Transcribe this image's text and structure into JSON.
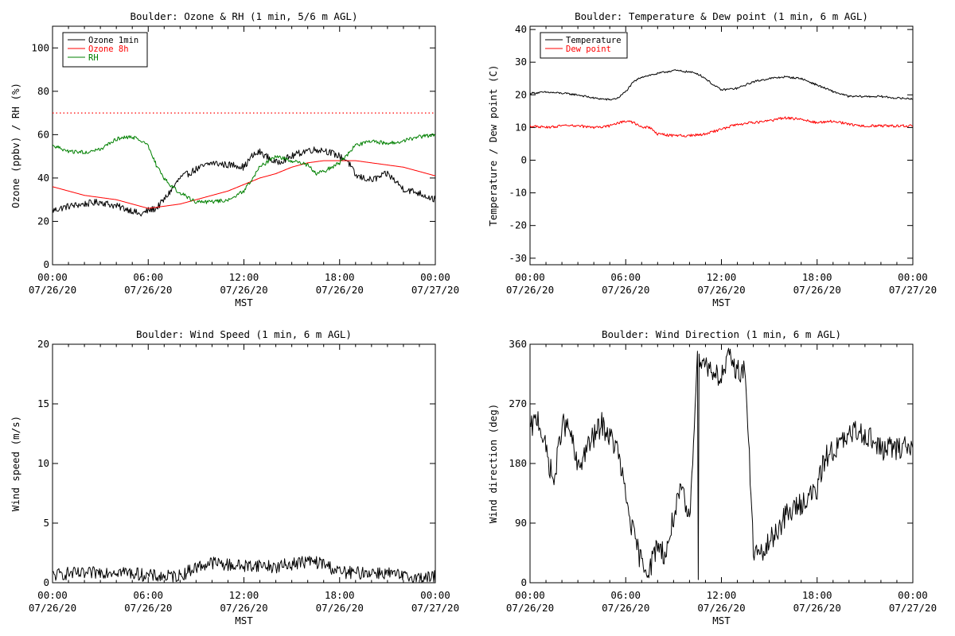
{
  "chart_data": [
    {
      "type": "line",
      "title": "Boulder: Ozone & RH (1 min, 5/6 m AGL)",
      "xlabel": "MST",
      "ylabel": "Ozone (ppbv) / RH (%)",
      "xlim": [
        0,
        24
      ],
      "ylim": [
        0,
        110
      ],
      "yticks": [
        0,
        20,
        40,
        60,
        80,
        100
      ],
      "xtick_times": [
        "00:00",
        "06:00",
        "12:00",
        "18:00",
        "00:00"
      ],
      "xtick_dates": [
        "07/26/20",
        "07/26/20",
        "07/26/20",
        "07/26/20",
        "07/27/20"
      ],
      "legend": "top-left",
      "reference_line": {
        "y": 70,
        "color": "#ff0000",
        "style": "dotted"
      },
      "series": [
        {
          "name": "Ozone 1min",
          "color": "#000000",
          "noise": 1.6,
          "x": [
            0,
            1,
            2,
            3,
            4,
            5,
            5.5,
            6,
            6.5,
            7,
            7.5,
            8,
            9,
            10,
            11,
            11.5,
            12,
            12.5,
            13,
            14,
            15,
            16,
            17,
            18,
            18.5,
            19,
            20,
            21,
            22,
            23,
            24
          ],
          "y": [
            25,
            27,
            28,
            29,
            27,
            25,
            23,
            25,
            26,
            30,
            35,
            40,
            44,
            47,
            46,
            46,
            45,
            50,
            52,
            47,
            50,
            53,
            53,
            50,
            48,
            41,
            39,
            42,
            35,
            33,
            30
          ]
        },
        {
          "name": "Ozone 8h",
          "color": "#ff0000",
          "noise": 0,
          "x": [
            0,
            1,
            2,
            3,
            4,
            5,
            6,
            7,
            8,
            9,
            10,
            11,
            12,
            13,
            14,
            15,
            16,
            17,
            18,
            19,
            20,
            21,
            22,
            23,
            24
          ],
          "y": [
            36,
            34,
            32,
            31,
            30,
            28,
            26,
            27,
            28,
            30,
            32,
            34,
            37,
            40,
            42,
            45,
            47,
            48,
            48,
            48,
            47,
            46,
            45,
            43,
            41
          ]
        },
        {
          "name": "RH",
          "color": "#008000",
          "noise": 0.9,
          "x": [
            0,
            1,
            2,
            3,
            4,
            5,
            6,
            6.5,
            7,
            7.5,
            8,
            9,
            10,
            11,
            12,
            13,
            14,
            15,
            16,
            16.5,
            17,
            18,
            19,
            20,
            21,
            22,
            23,
            24
          ],
          "y": [
            55,
            52,
            52,
            53,
            58,
            59,
            55,
            46,
            40,
            36,
            33,
            29,
            29,
            30,
            34,
            45,
            50,
            48,
            46,
            42,
            43,
            47,
            55,
            57,
            56,
            57,
            59,
            60
          ]
        }
      ]
    },
    {
      "type": "line",
      "title": "Boulder: Temperature & Dew point (1 min, 6 m AGL)",
      "xlabel": "MST",
      "ylabel": "Temperature / Dew point (C)",
      "xlim": [
        0,
        24
      ],
      "ylim": [
        -32,
        41
      ],
      "yticks": [
        -30,
        -20,
        -10,
        0,
        10,
        20,
        30,
        40
      ],
      "xtick_times": [
        "00:00",
        "06:00",
        "12:00",
        "18:00",
        "00:00"
      ],
      "xtick_dates": [
        "07/26/20",
        "07/26/20",
        "07/26/20",
        "07/26/20",
        "07/27/20"
      ],
      "legend": "top-left",
      "series": [
        {
          "name": "Temperature",
          "color": "#000000",
          "noise": 0.3,
          "x": [
            0,
            1,
            2,
            3,
            4,
            5,
            5.5,
            6,
            6.5,
            7,
            8,
            9,
            10,
            10.5,
            11,
            11.5,
            12,
            13,
            13.5,
            14,
            15,
            16,
            17,
            18,
            19,
            20,
            21,
            22,
            23,
            24
          ],
          "y": [
            20.5,
            20.8,
            20.5,
            20,
            19,
            18.5,
            19,
            21,
            24,
            25.5,
            26.5,
            27.5,
            27,
            26.5,
            25,
            23,
            21.5,
            22,
            23,
            24,
            25,
            25.5,
            25,
            23,
            21,
            19.5,
            19.5,
            19.5,
            19,
            18.8
          ]
        },
        {
          "name": "Dew point",
          "color": "#ff0000",
          "noise": 0.4,
          "x": [
            0,
            1,
            2,
            3,
            4,
            5,
            6,
            6.5,
            7,
            7.5,
            8,
            9,
            10,
            11,
            12,
            13,
            14,
            15,
            16,
            17,
            18,
            19,
            20,
            21,
            22,
            23,
            24
          ],
          "y": [
            10.5,
            10,
            10.5,
            10.5,
            10,
            10.5,
            12,
            11.5,
            10,
            10,
            8,
            7.5,
            7.5,
            8,
            9.5,
            11,
            11.5,
            12,
            13,
            12.5,
            11.5,
            12,
            11,
            10.5,
            10.5,
            10.5,
            10.5
          ]
        }
      ]
    },
    {
      "type": "line",
      "title": "Boulder: Wind Speed (1 min, 6 m AGL)",
      "xlabel": "MST",
      "ylabel": "Wind speed (m/s)",
      "xlim": [
        0,
        24
      ],
      "ylim": [
        0,
        20
      ],
      "yticks": [
        0,
        5,
        10,
        15,
        20
      ],
      "xtick_times": [
        "00:00",
        "06:00",
        "12:00",
        "18:00",
        "00:00"
      ],
      "xtick_dates": [
        "07/26/20",
        "07/26/20",
        "07/26/20",
        "07/26/20",
        "07/27/20"
      ],
      "series": [
        {
          "name": "",
          "color": "#000000",
          "noise": 0.55,
          "floor": 0,
          "x": [
            0,
            1,
            2,
            3,
            4,
            5,
            6,
            7,
            8,
            9,
            10,
            11,
            12,
            13,
            14,
            15,
            16,
            17,
            18,
            19,
            20,
            21,
            22,
            23,
            24
          ],
          "y": [
            0.6,
            0.8,
            0.7,
            0.9,
            1.0,
            0.8,
            0.6,
            0.5,
            0.6,
            1.3,
            1.7,
            1.5,
            1.4,
            1.5,
            1.3,
            1.6,
            1.8,
            1.6,
            0.9,
            0.8,
            0.9,
            0.8,
            0.5,
            0.4,
            0.5
          ]
        }
      ]
    },
    {
      "type": "line",
      "title": "Boulder: Wind Direction (1 min, 6 m AGL)",
      "xlabel": "MST",
      "ylabel": "Wind direction (deg)",
      "xlim": [
        0,
        24
      ],
      "ylim": [
        0,
        360
      ],
      "yticks": [
        0,
        90,
        180,
        270,
        360
      ],
      "xtick_times": [
        "00:00",
        "06:00",
        "12:00",
        "18:00",
        "00:00"
      ],
      "xtick_dates": [
        "07/26/20",
        "07/26/20",
        "07/26/20",
        "07/26/20",
        "07/27/20"
      ],
      "series": [
        {
          "name": "",
          "color": "#000000",
          "noise": 18,
          "wrap": 360,
          "x": [
            0,
            0.5,
            1,
            1.5,
            2,
            2.5,
            3,
            3.5,
            4,
            4.5,
            5,
            5.5,
            6,
            6.5,
            7,
            7.5,
            8,
            8.5,
            9,
            9.5,
            10,
            10.5,
            11,
            11.5,
            12,
            12.5,
            13,
            13.5,
            14,
            14.5,
            15,
            15.5,
            16,
            16.5,
            17,
            17.5,
            18,
            18.5,
            19,
            19.5,
            20,
            20.5,
            21,
            21.5,
            22,
            22.5,
            23,
            23.5,
            24
          ],
          "y": [
            230,
            250,
            200,
            150,
            240,
            230,
            170,
            200,
            220,
            240,
            220,
            200,
            130,
            70,
            30,
            20,
            60,
            40,
            100,
            140,
            90,
            350,
            330,
            320,
            310,
            340,
            320,
            320,
            50,
            40,
            60,
            80,
            100,
            110,
            120,
            130,
            140,
            190,
            200,
            210,
            220,
            230,
            225,
            215,
            200,
            205,
            200,
            210,
            200
          ]
        }
      ]
    }
  ]
}
